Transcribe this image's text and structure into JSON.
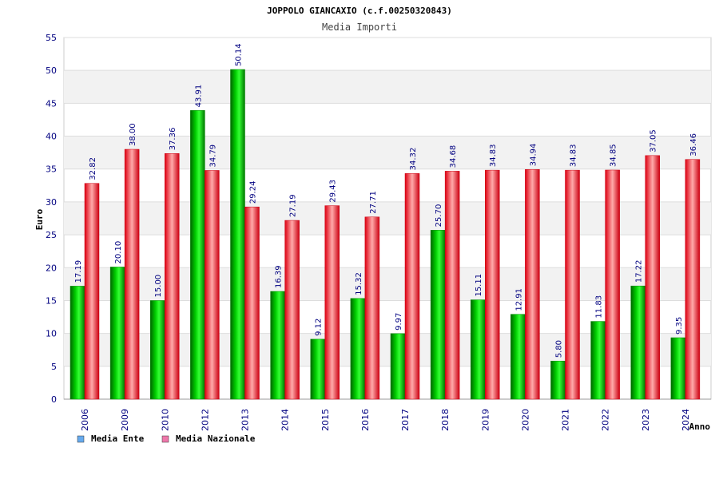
{
  "chart_data": {
    "type": "bar",
    "title": "JOPPOLO GIANCAXIO (c.f.00250320843)",
    "subtitle": "Media Importi",
    "xlabel": "Anno",
    "ylabel": "Euro",
    "ylim": [
      0,
      55
    ],
    "yticks": [
      "0",
      "5",
      "10",
      "15",
      "20",
      "25",
      "30",
      "35",
      "40",
      "45",
      "50",
      "55"
    ],
    "grid": true,
    "legend_position": "bottom-left",
    "categories": [
      "2006",
      "2009",
      "2010",
      "2012",
      "2013",
      "2014",
      "2015",
      "2016",
      "2017",
      "2018",
      "2019",
      "2020",
      "2021",
      "2022",
      "2023",
      "2024"
    ],
    "series": [
      {
        "name": "Media Ente",
        "color": "#00cc00",
        "legend_color": "#66aaee",
        "values": [
          17.19,
          20.1,
          15.0,
          43.91,
          50.14,
          16.39,
          9.12,
          15.32,
          9.97,
          25.7,
          15.11,
          12.91,
          5.8,
          11.83,
          17.22,
          9.35
        ],
        "labels": [
          "17.19",
          "20.10",
          "15.00",
          "43.91",
          "50.14",
          "16.39",
          "9.12",
          "15.32",
          "9.97",
          "25.70",
          "15.11",
          "12.91",
          "5.80",
          "11.83",
          "17.22",
          "9.35"
        ]
      },
      {
        "name": "Media Nazionale",
        "color": "#ee1122",
        "legend_color": "#ee77aa",
        "values": [
          32.82,
          38.0,
          37.36,
          34.79,
          29.24,
          27.19,
          29.43,
          27.71,
          34.32,
          34.68,
          34.83,
          34.94,
          34.83,
          34.85,
          37.05,
          36.46
        ],
        "labels": [
          "32.82",
          "38.00",
          "37.36",
          "34.79",
          "29.24",
          "27.19",
          "29.43",
          "27.71",
          "34.32",
          "34.68",
          "34.83",
          "34.94",
          "34.83",
          "34.85",
          "37.05",
          "36.46"
        ]
      }
    ]
  }
}
